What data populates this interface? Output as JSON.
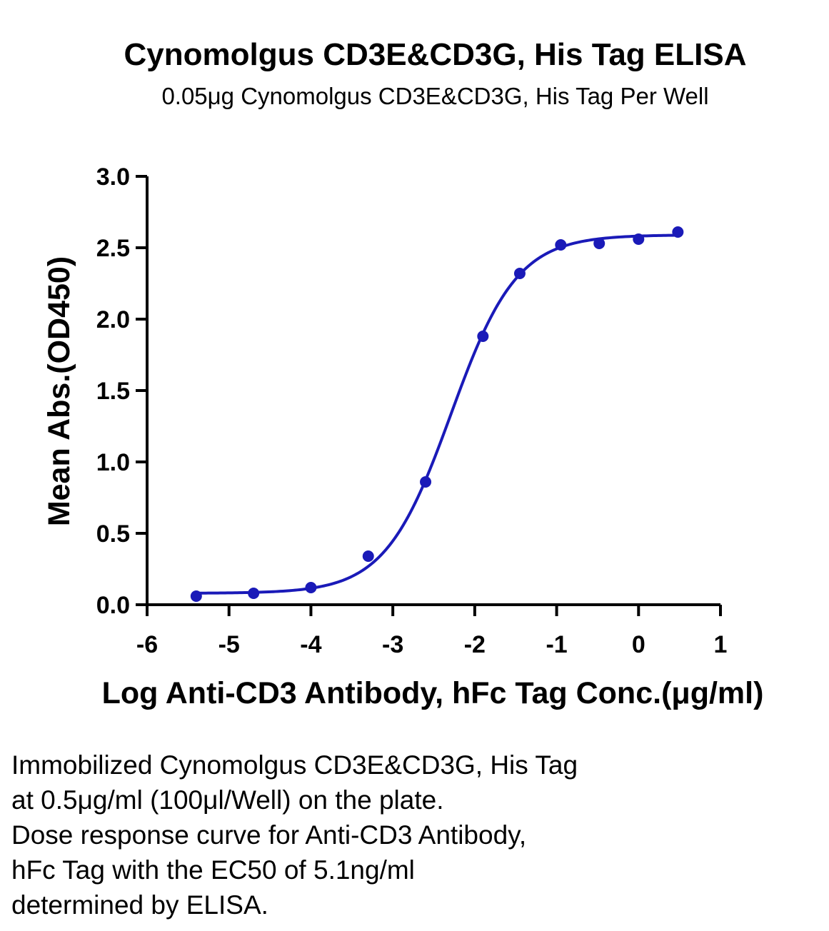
{
  "chart_data": {
    "type": "scatter",
    "title": "Cynomolgus CD3E&CD3G, His Tag ELISA",
    "subtitle": "0.05μg Cynomolgus CD3E&CD3G, His Tag Per Well",
    "xlabel": "Log Anti-CD3 Antibody, hFc Tag Conc.(μg/ml)",
    "ylabel": "Mean Abs.(OD450)",
    "xlim": [
      -6,
      1
    ],
    "ylim": [
      0,
      3
    ],
    "x_ticks": [
      "-6",
      "-5",
      "-4",
      "-3",
      "-2",
      "-1",
      "0",
      "1"
    ],
    "y_ticks": [
      "0.0",
      "0.5",
      "1.0",
      "1.5",
      "2.0",
      "2.5",
      "3.0"
    ],
    "grid": false,
    "series": [
      {
        "x": [
          -5.4,
          -4.7,
          -4.0,
          -3.3,
          -2.6,
          -1.9,
          -1.45,
          -0.95,
          -0.48,
          0.0,
          0.48
        ],
        "y": [
          0.06,
          0.08,
          0.12,
          0.34,
          0.86,
          1.88,
          2.32,
          2.52,
          2.53,
          2.56,
          2.61
        ],
        "color": "#1a1ab8"
      }
    ],
    "fit": {
      "type": "4PL",
      "bottom": 0.08,
      "top": 2.59,
      "log_ec50": -2.29,
      "hill": 1.08
    }
  },
  "caption": {
    "lines": [
      "Immobilized Cynomolgus CD3E&CD3G, His Tag",
      "at 0.5μg/ml (100μl/Well) on the plate.",
      "Dose response curve for Anti-CD3 Antibody,",
      "hFc Tag with the EC50 of 5.1ng/ml",
      "determined by ELISA."
    ]
  }
}
